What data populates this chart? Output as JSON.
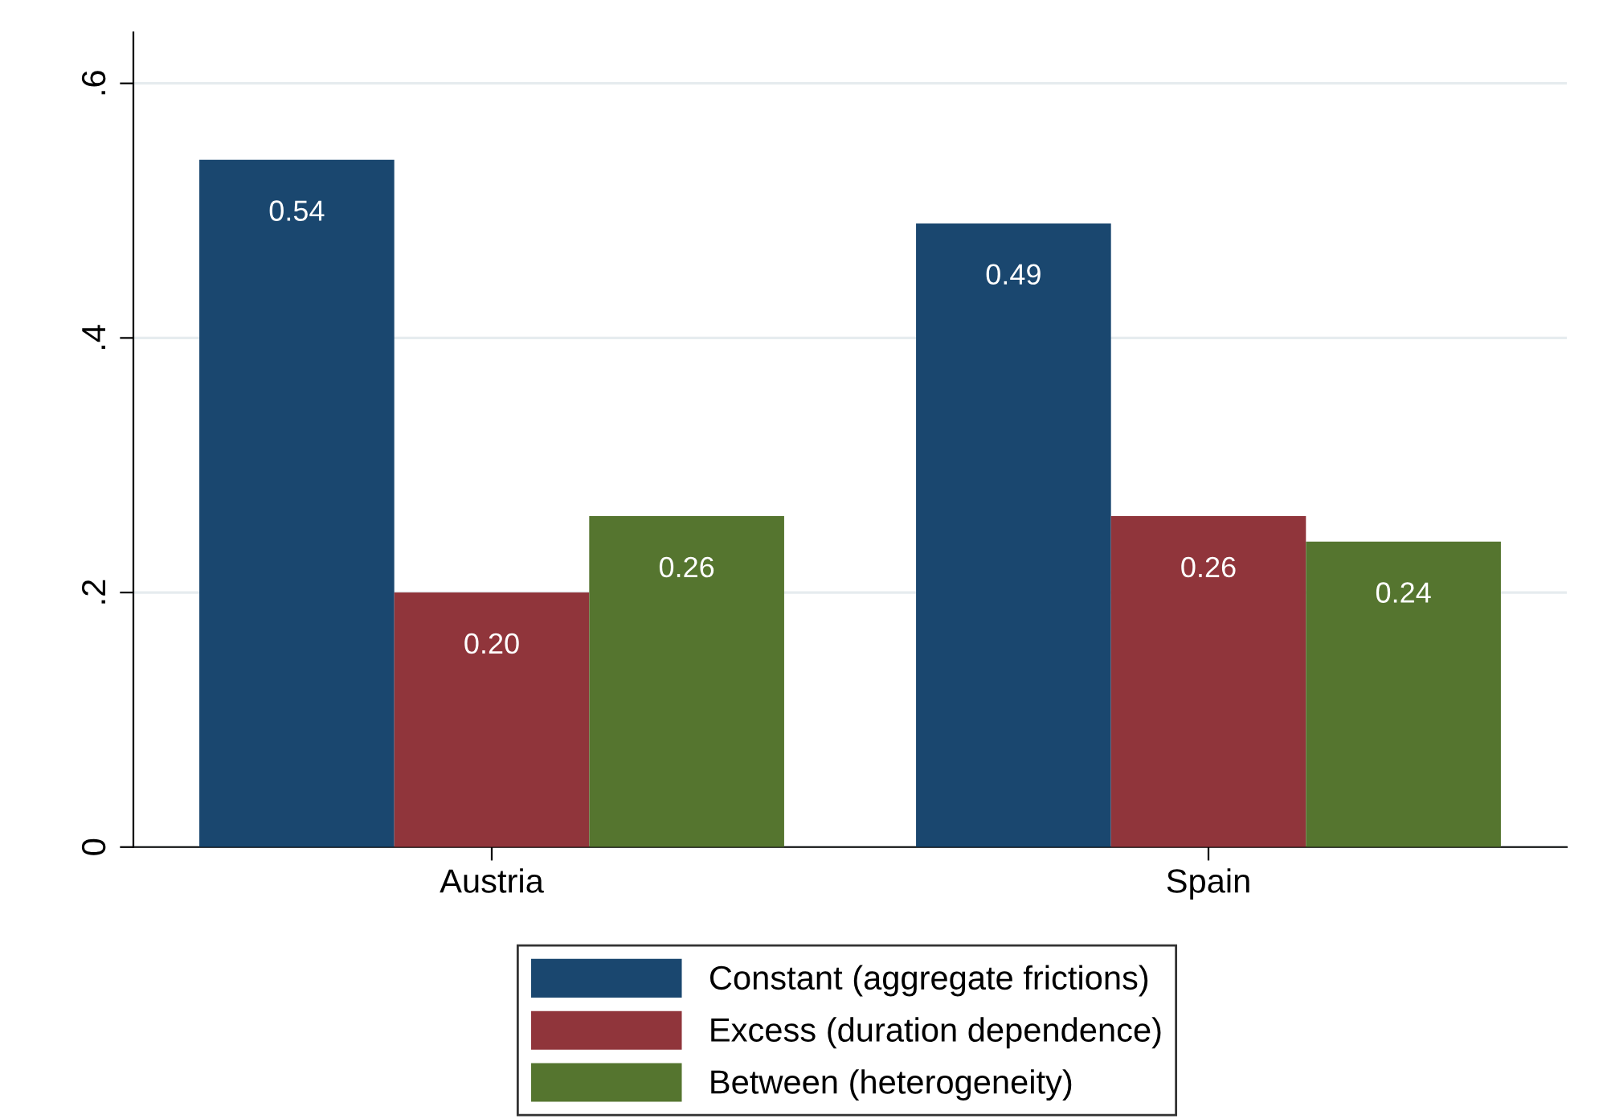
{
  "chart_data": {
    "type": "bar",
    "categories": [
      "Austria",
      "Spain"
    ],
    "series": [
      {
        "name": "Constant (aggregate frictions)",
        "color": "#1a476f",
        "values": [
          0.54,
          0.49
        ],
        "value_labels": [
          "0.54",
          "0.49"
        ]
      },
      {
        "name": "Excess (duration dependence)",
        "color": "#90353b",
        "values": [
          0.2,
          0.26
        ],
        "value_labels": [
          "0.20",
          "0.26"
        ]
      },
      {
        "name": "Between (heterogeneity)",
        "color": "#55752f",
        "values": [
          0.26,
          0.24
        ],
        "value_labels": [
          "0.26",
          "0.24"
        ]
      }
    ],
    "ylim": [
      0,
      0.64
    ],
    "yticks": [
      {
        "value": 0,
        "label": "0"
      },
      {
        "value": 0.2,
        "label": ".2"
      },
      {
        "value": 0.4,
        "label": ".4"
      },
      {
        "value": 0.6,
        "label": ".6"
      }
    ],
    "grid": "y",
    "legend": "bottom"
  }
}
